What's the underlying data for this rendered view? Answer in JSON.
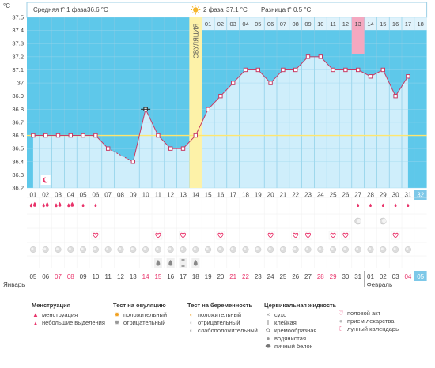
{
  "header": {
    "unit": "°C",
    "phase1_label": "Средняя t° 1 фаза",
    "phase1_value": "36.6 °C",
    "phase2_label": "2 фаза",
    "phase2_value": "37.1 °C",
    "diff_label": "Разница t°",
    "diff_value": "0.5 °C",
    "ovulation_label": "ОВУЛЯЦИЯ"
  },
  "chart_data": {
    "type": "line",
    "ylim": [
      36.2,
      37.5
    ],
    "yticks": [
      "36.2",
      "36.3",
      "36.4",
      "36.5",
      "36.6",
      "36.7",
      "36.8",
      "36.9",
      "37",
      "37.1",
      "37.2",
      "37.3",
      "37.4",
      "37.5"
    ],
    "days": [
      "01",
      "02",
      "03",
      "04",
      "05",
      "06",
      "07",
      "08",
      "09",
      "10",
      "11",
      "12",
      "13",
      "14",
      "15",
      "16",
      "17",
      "18",
      "19",
      "20",
      "21",
      "22",
      "23",
      "24",
      "25",
      "26",
      "27",
      "28",
      "29",
      "30",
      "31",
      "32"
    ],
    "temps": [
      36.6,
      36.6,
      36.6,
      36.6,
      36.6,
      36.6,
      36.5,
      null,
      36.4,
      36.8,
      36.6,
      36.5,
      36.5,
      36.6,
      36.8,
      36.9,
      37.0,
      37.1,
      37.1,
      37.0,
      37.1,
      37.1,
      37.2,
      37.2,
      37.1,
      37.1,
      37.1,
      37.05,
      37.1,
      36.9,
      37.05,
      null
    ],
    "baseline": 36.6,
    "ovulation_day": 14,
    "post_ovulation_days": [
      "01",
      "02",
      "03",
      "04",
      "05",
      "06",
      "07",
      "08",
      "09",
      "10",
      "11",
      "12",
      "13",
      "14",
      "15",
      "16",
      "17",
      "18"
    ],
    "highlight_post_day": "13",
    "current_day": "32",
    "dates": [
      "05",
      "06",
      "07",
      "08",
      "09",
      "10",
      "11",
      "12",
      "13",
      "14",
      "15",
      "16",
      "17",
      "18",
      "19",
      "20",
      "21",
      "22",
      "23",
      "24",
      "25",
      "26",
      "27",
      "28",
      "29",
      "30",
      "31",
      "01",
      "02",
      "03",
      "04",
      "05"
    ],
    "red_dates": [
      "07",
      "08",
      "14",
      "15",
      "21",
      "22",
      "28",
      "29",
      "04"
    ],
    "month_start": "Январь",
    "month_next": "Февраль",
    "menstruation_heavy_days": [
      1,
      2,
      3,
      4
    ],
    "menstruation_light_days": [
      5,
      6,
      27,
      28,
      29,
      30,
      31
    ],
    "moon_day": 2,
    "ovulation_test_negative_days": [
      27,
      29
    ],
    "intercourse_days": [
      6,
      11,
      13,
      16,
      20,
      22,
      23,
      25,
      26,
      30
    ],
    "pill_days": [
      1,
      2,
      3,
      4,
      5,
      6,
      7,
      8,
      9,
      10,
      11,
      12,
      13,
      14,
      15,
      16,
      17,
      18,
      19,
      20,
      21,
      22,
      23,
      24,
      25,
      26,
      27,
      28,
      29,
      30,
      31
    ],
    "fluid_watery_days": [
      11,
      12,
      14
    ],
    "fluid_sticky_days": [
      13
    ]
  },
  "legend": {
    "menstruation": {
      "title": "Менструация",
      "items": [
        "менструация",
        "небольшие выделения"
      ]
    },
    "ovulation_test": {
      "title": "Тест на овуляцию",
      "items": [
        "положительный",
        "отрицательный"
      ]
    },
    "pregnancy_test": {
      "title": "Тест на беременность",
      "items": [
        "положительный",
        "отрицательный",
        "слабоположительный"
      ]
    },
    "cervical_fluid": {
      "title": "Цервикальная жидкость",
      "items": [
        "сухо",
        "клейкая",
        "кремообразная",
        "водянистая",
        "яичный белок"
      ]
    },
    "other": {
      "items": [
        "половой акт",
        "прием лекарства",
        "лунный календарь"
      ]
    }
  }
}
